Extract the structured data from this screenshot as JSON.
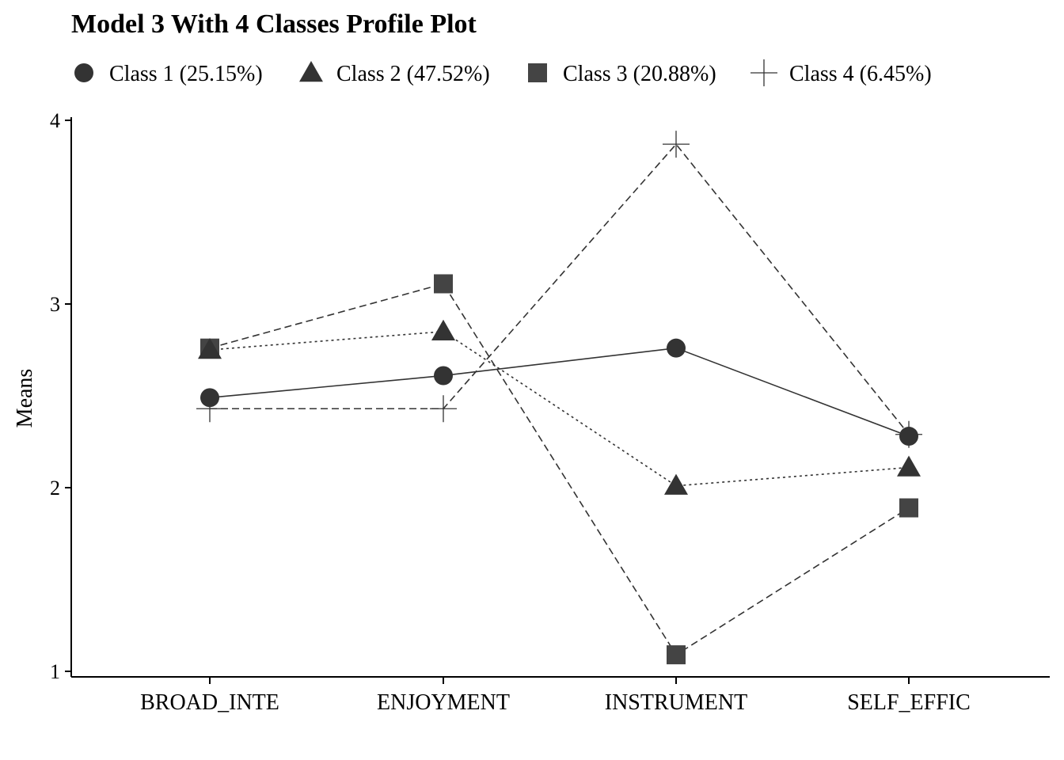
{
  "chart_data": {
    "type": "line",
    "title": "Model 3 With 4 Classes Profile Plot",
    "xlabel": "",
    "ylabel": "Means",
    "categories": [
      "BROAD_INTE",
      "ENJOYMENT",
      "INSTRUMENT",
      "SELF_EFFIC"
    ],
    "ylim": [
      1,
      4
    ],
    "yticks": [
      "1",
      "2",
      "3",
      "4"
    ],
    "legend_position": "top",
    "grid": false,
    "series": [
      {
        "name": "Class 1 (25.15%)",
        "marker": "circle",
        "line": "solid",
        "values": [
          2.49,
          2.61,
          2.76,
          2.28
        ]
      },
      {
        "name": "Class 2 (47.52%)",
        "marker": "triangle",
        "line": "dotted",
        "values": [
          2.75,
          2.85,
          2.01,
          2.11
        ]
      },
      {
        "name": "Class 3 (20.88%)",
        "marker": "square",
        "line": "dashed",
        "values": [
          2.76,
          3.11,
          1.09,
          1.89
        ]
      },
      {
        "name": "Class 4 (6.45%)",
        "marker": "cross",
        "line": "dashed",
        "values": [
          2.43,
          2.43,
          3.87,
          2.29
        ]
      }
    ],
    "colors": {
      "line": "#333333",
      "marker": "#333333",
      "square": "#444444"
    }
  }
}
